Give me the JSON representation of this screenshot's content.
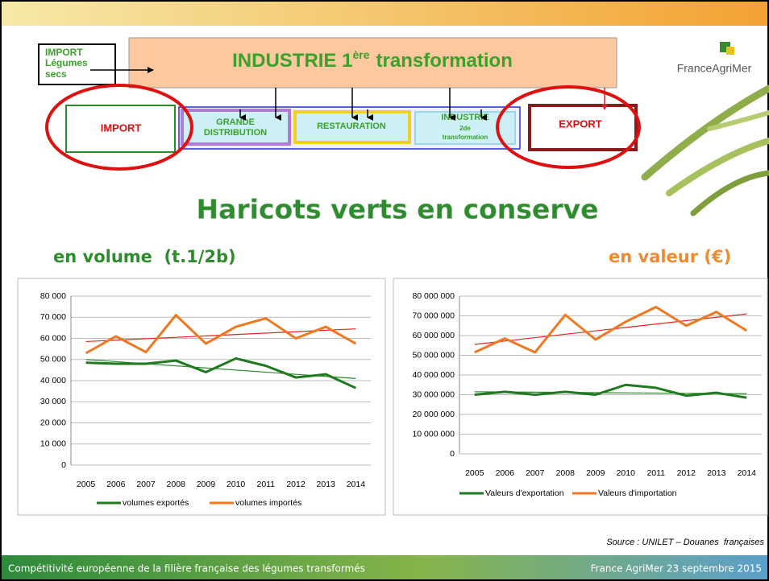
{
  "diagram": {
    "import_secs": [
      "IMPORT",
      "Légumes",
      "secs"
    ],
    "industrie": [
      "INDUSTRIE 1",
      "ère",
      "transformation"
    ],
    "import": "IMPORT",
    "grande_distribution": [
      "GRANDE",
      "DISTRIBUTION"
    ],
    "restauration": "RESTAURATION",
    "industrie2": [
      "INDUSTRIE",
      "2de",
      "transformation"
    ],
    "export": "EXPORT"
  },
  "logo": "FranceAgriMer",
  "title": "Haricots verts en conserve",
  "subtitles": [
    "en volume  (t.1/2b)",
    "en valeur (€)"
  ],
  "source": "Source : UNILET – Douanes  françaises",
  "footer": {
    "left": "Compétitivité européenne de la filière française des légumes transformés",
    "right": "France AgriMer 23 septembre 2015"
  },
  "chart_data": [
    {
      "type": "line",
      "categories": [
        "2005",
        "2006",
        "2007",
        "2008",
        "2009",
        "2010",
        "2011",
        "2012",
        "2013",
        "2014"
      ],
      "series": [
        {
          "name": "volumes exportés",
          "color": "#1f7a1f",
          "values": [
            48500,
            48000,
            48000,
            49500,
            44000,
            50500,
            47000,
            41500,
            43000,
            36500
          ]
        },
        {
          "name": "volumes importés",
          "color": "#f07820",
          "values": [
            53000,
            61000,
            53500,
            71000,
            57500,
            65500,
            69500,
            60000,
            65500,
            57500
          ]
        }
      ],
      "trendlines": [
        {
          "color": "#2e8b2e",
          "values": [
            50000,
            41000
          ]
        },
        {
          "color": "#e8221f",
          "values": [
            58500,
            64500
          ]
        }
      ],
      "ylim": [
        0,
        80000
      ],
      "yticks": [
        0,
        {
          "value": 10000,
          "label": "10 000"
        },
        {
          "value": 20000,
          "label": "20 000"
        },
        {
          "value": 30000,
          "label": "30 000"
        },
        {
          "value": 40000,
          "label": "40 000"
        },
        {
          "value": 50000,
          "label": "50 000"
        },
        {
          "value": 60000,
          "label": "60 000"
        },
        {
          "value": 70000,
          "label": "70 000"
        },
        {
          "value": 80000,
          "label": "80 000"
        }
      ],
      "grid": true
    },
    {
      "type": "line",
      "categories": [
        "2005",
        "2006",
        "2007",
        "2008",
        "2009",
        "2010",
        "2011",
        "2012",
        "2013",
        "2014"
      ],
      "series": [
        {
          "name": "Valeurs d'exportation",
          "color": "#1f7a1f",
          "values": [
            30000000,
            31500000,
            30000000,
            31500000,
            30000000,
            35000000,
            33500000,
            29500000,
            31000000,
            28500000
          ]
        },
        {
          "name": "Valeurs d'importation",
          "color": "#f07820",
          "values": [
            51500000,
            58500000,
            51500000,
            70500000,
            58000000,
            67000000,
            74500000,
            65000000,
            72000000,
            62500000
          ]
        }
      ],
      "trendlines": [
        {
          "color": "#2e8b2e",
          "values": [
            31500000,
            30500000
          ]
        },
        {
          "color": "#e8221f",
          "values": [
            55500000,
            71000000
          ]
        }
      ],
      "ylim": [
        0,
        80000000
      ],
      "yticks": [
        0,
        {
          "value": 10000000,
          "label": "10 000 000"
        },
        {
          "value": 20000000,
          "label": "20 000 000"
        },
        {
          "value": 30000000,
          "label": "30 000 000"
        },
        {
          "value": 40000000,
          "label": "40 000 000"
        },
        {
          "value": 50000000,
          "label": "50 000 000"
        },
        {
          "value": 60000000,
          "label": "60 000 000"
        },
        {
          "value": 70000000,
          "label": "70 000 000"
        },
        {
          "value": 80000000,
          "label": "80 000 000"
        }
      ],
      "grid": true
    }
  ]
}
